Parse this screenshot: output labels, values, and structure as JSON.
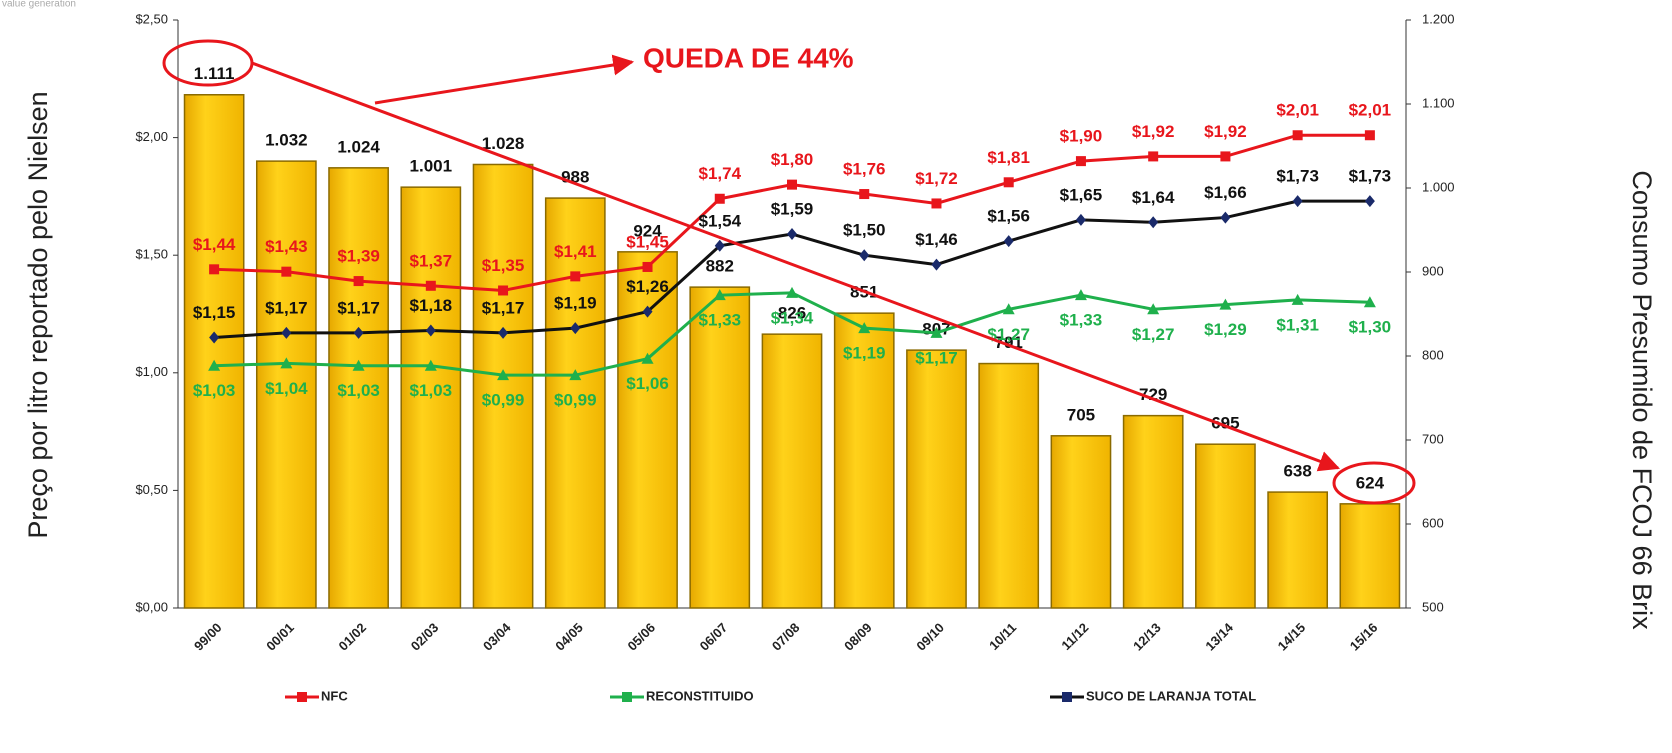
{
  "chart_data": {
    "type": "combo",
    "watermark": "value generation",
    "annotation": "QUEDA DE 44%",
    "y_label": "Preço por litro reportado pelo Nielsen",
    "y2_label": "Consumo Presumido de FCOJ 66 Brix",
    "categories": [
      "99/00",
      "00/01",
      "01/02",
      "02/03",
      "03/04",
      "04/05",
      "05/06",
      "06/07",
      "07/08",
      "08/09",
      "09/10",
      "10/11",
      "11/12",
      "12/13",
      "13/14",
      "14/15",
      "15/16"
    ],
    "ylim": [
      0,
      2.5
    ],
    "yticks": [
      {
        "value": 0,
        "label": "$0,00"
      },
      {
        "value": 0.5,
        "label": "$0,50"
      },
      {
        "value": 1,
        "label": "$1,00"
      },
      {
        "value": 1.5,
        "label": "$1,50"
      },
      {
        "value": 2,
        "label": "$2,00"
      },
      {
        "value": 2.5,
        "label": "$2,50"
      }
    ],
    "y2lim": [
      500,
      1200
    ],
    "y2ticks": [
      500,
      600,
      700,
      800,
      900,
      {
        "value": 1000,
        "label": "1.000"
      },
      {
        "value": 1100,
        "label": "1.100"
      },
      {
        "value": 1200,
        "label": "1.200"
      }
    ],
    "bars": {
      "type": "bar",
      "axis": "y2",
      "color": "#ffc000",
      "values": [
        1111,
        1032,
        1024,
        1001,
        1028,
        988,
        924,
        882,
        826,
        851,
        807,
        791,
        705,
        729,
        695,
        638,
        624
      ],
      "value_labels": [
        "1.111",
        "1.032",
        "1.024",
        "1.001",
        "1.028",
        "988",
        "924",
        "882",
        "826",
        "851",
        "807",
        "791",
        "705",
        "729",
        "695",
        "638",
        "624"
      ]
    },
    "series": [
      {
        "name": "NFC",
        "type": "line",
        "marker": "square",
        "color": "#e8161c",
        "values": [
          1.44,
          1.43,
          1.39,
          1.37,
          1.35,
          1.41,
          1.45,
          1.74,
          1.8,
          1.76,
          1.72,
          1.81,
          1.9,
          1.92,
          1.92,
          2.01,
          2.01
        ],
        "value_labels": [
          "$1,44",
          "$1,43",
          "$1,39",
          "$1,37",
          "$1,35",
          "$1,41",
          "$1,45",
          "$1,74",
          "$1,80",
          "$1,76",
          "$1,72",
          "$1,81",
          "$1,90",
          "$1,92",
          "$1,92",
          "$2,01",
          "$2,01"
        ]
      },
      {
        "name": "RECONSTITUIDO",
        "type": "line",
        "marker": "triangle",
        "color": "#1fb04c",
        "values": [
          1.03,
          1.04,
          1.03,
          1.03,
          0.99,
          0.99,
          1.06,
          1.33,
          1.34,
          1.19,
          1.17,
          1.27,
          1.33,
          1.27,
          1.29,
          1.31,
          1.3
        ],
        "value_labels": [
          "$1,03",
          "$1,04",
          "$1,03",
          "$1,03",
          "$0,99",
          "$0,99",
          "$1,06",
          "$1,33",
          "$1,34",
          "$1,19",
          "$1,17",
          "$1,27",
          "$1,33",
          "$1,27",
          "$1,29",
          "$1,31",
          "$1,30"
        ]
      },
      {
        "name": "SUCO DE LARANJA TOTAL",
        "type": "line",
        "marker": "diamond",
        "color": "#111111",
        "values": [
          1.15,
          1.17,
          1.17,
          1.18,
          1.17,
          1.19,
          1.26,
          1.54,
          1.59,
          1.5,
          1.46,
          1.56,
          1.65,
          1.64,
          1.66,
          1.73,
          1.73
        ],
        "value_labels": [
          "$1,15",
          "$1,17",
          "$1,17",
          "$1,18",
          "$1,17",
          "$1,19",
          "$1,26",
          "$1,54",
          "$1,59",
          "$1,50",
          "$1,46",
          "$1,56",
          "$1,65",
          "$1,64",
          "$1,66",
          "$1,73",
          "$1,73"
        ]
      }
    ]
  }
}
